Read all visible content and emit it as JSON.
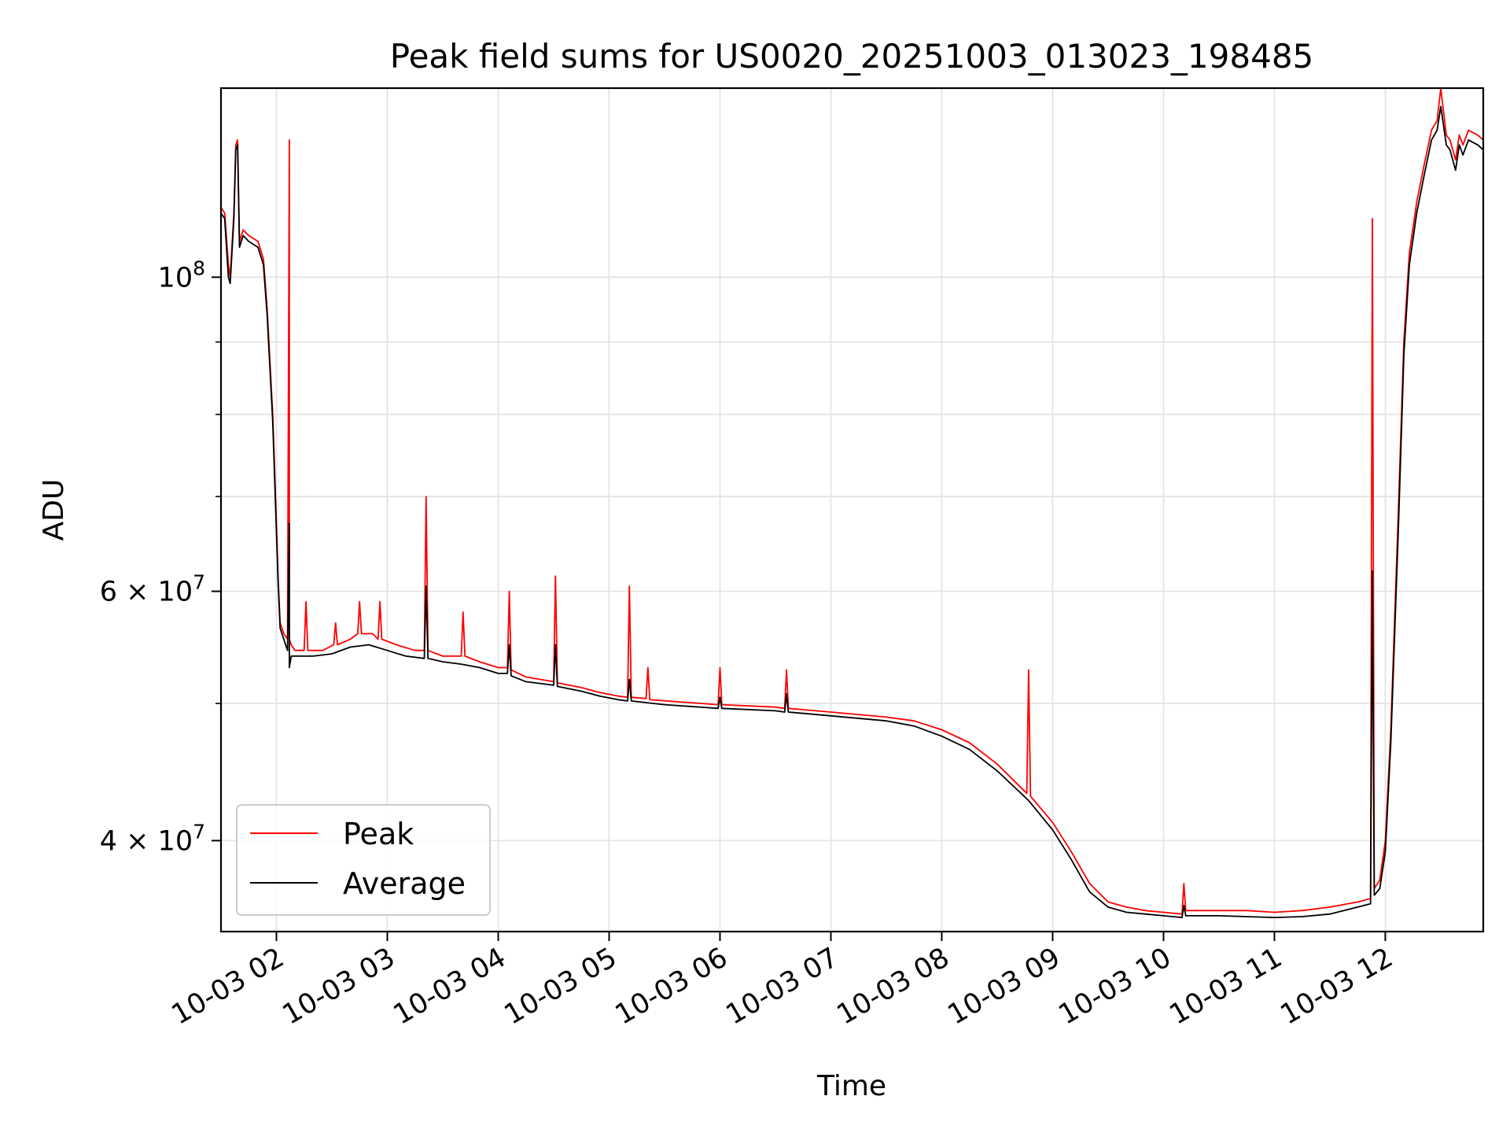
{
  "chart_data": {
    "type": "line",
    "title": "Peak field sums for US0020_20251003_013023_198485",
    "xlabel": "Time",
    "ylabel": "ADU",
    "yscale": "log",
    "ylim": [
      34500000,
      136000000
    ],
    "xlim": [
      "2025-10-03 01:30",
      "2025-10-03 12:53"
    ],
    "grid": true,
    "legend": "lower-left",
    "x_ticks": [
      "10-03 02",
      "10-03 03",
      "10-03 04",
      "10-03 05",
      "10-03 06",
      "10-03 07",
      "10-03 08",
      "10-03 09",
      "10-03 10",
      "10-03 11",
      "10-03 12"
    ],
    "y_ticks": [
      {
        "value": 100000000,
        "base": "10",
        "exp": "8"
      },
      {
        "value": 60000000,
        "base": "6 × 10",
        "exp": "7"
      },
      {
        "value": 40000000,
        "base": "4 × 10",
        "exp": "7"
      }
    ],
    "y_minor_ticks": [
      50000000,
      70000000,
      80000000,
      90000000
    ],
    "series": [
      {
        "name": "Peak",
        "color": "#ff0000",
        "points": [
          [
            "01:30",
            112000000
          ],
          [
            "01:32",
            111000000
          ],
          [
            "01:34",
            102000000
          ],
          [
            "01:35",
            100000000
          ],
          [
            "01:37",
            111000000
          ],
          [
            "01:38",
            124000000
          ],
          [
            "01:39",
            125000000
          ],
          [
            "01:40",
            106000000
          ],
          [
            "01:42",
            108000000
          ],
          [
            "01:45",
            107000000
          ],
          [
            "01:50",
            106000000
          ],
          [
            "01:52",
            104000000
          ],
          [
            "01:53",
            103000000
          ],
          [
            "01:55",
            95000000
          ],
          [
            "01:58",
            80000000
          ],
          [
            "02:00",
            67000000
          ],
          [
            "02:01",
            61000000
          ],
          [
            "02:02",
            57000000
          ],
          [
            "02:04",
            56000000
          ],
          [
            "02:06",
            55500000
          ],
          [
            "02:07",
            125000000
          ],
          [
            "02:07",
            55500000
          ],
          [
            "02:08",
            55000000
          ],
          [
            "02:10",
            54500000
          ],
          [
            "02:15",
            54500000
          ],
          [
            "02:16",
            59000000
          ],
          [
            "02:17",
            54500000
          ],
          [
            "02:25",
            54500000
          ],
          [
            "02:31",
            55000000
          ],
          [
            "02:32",
            57000000
          ],
          [
            "02:33",
            55000000
          ],
          [
            "02:40",
            55500000
          ],
          [
            "02:44",
            56000000
          ],
          [
            "02:45",
            59000000
          ],
          [
            "02:46",
            56000000
          ],
          [
            "02:52",
            56000000
          ],
          [
            "02:55",
            55500000
          ],
          [
            "02:56",
            59000000
          ],
          [
            "02:57",
            55500000
          ],
          [
            "03:05",
            55000000
          ],
          [
            "03:15",
            54500000
          ],
          [
            "03:20",
            54500000
          ],
          [
            "03:21",
            70000000
          ],
          [
            "03:22",
            54500000
          ],
          [
            "03:30",
            54000000
          ],
          [
            "03:40",
            54000000
          ],
          [
            "03:41",
            58000000
          ],
          [
            "03:42",
            54000000
          ],
          [
            "03:50",
            53500000
          ],
          [
            "04:00",
            53000000
          ],
          [
            "04:05",
            53000000
          ],
          [
            "04:06",
            60000000
          ],
          [
            "04:07",
            52800000
          ],
          [
            "04:15",
            52200000
          ],
          [
            "04:30",
            51800000
          ],
          [
            "04:31",
            61500000
          ],
          [
            "04:32",
            51700000
          ],
          [
            "04:45",
            51300000
          ],
          [
            "04:55",
            50900000
          ],
          [
            "05:05",
            50600000
          ],
          [
            "05:10",
            50500000
          ],
          [
            "05:11",
            60500000
          ],
          [
            "05:12",
            50500000
          ],
          [
            "05:20",
            50400000
          ],
          [
            "05:21",
            53000000
          ],
          [
            "05:22",
            50300000
          ],
          [
            "05:40",
            50100000
          ],
          [
            "05:59",
            49900000
          ],
          [
            "06:00",
            53000000
          ],
          [
            "06:01",
            49900000
          ],
          [
            "06:30",
            49700000
          ],
          [
            "06:35",
            49600000
          ],
          [
            "06:36",
            52800000
          ],
          [
            "06:37",
            49600000
          ],
          [
            "07:00",
            49300000
          ],
          [
            "07:30",
            48900000
          ],
          [
            "07:45",
            48600000
          ],
          [
            "08:00",
            47900000
          ],
          [
            "08:15",
            46900000
          ],
          [
            "08:30",
            45300000
          ],
          [
            "08:46",
            43200000
          ],
          [
            "08:47",
            52800000
          ],
          [
            "08:48",
            43000000
          ],
          [
            "09:00",
            41200000
          ],
          [
            "09:10",
            39300000
          ],
          [
            "09:20",
            37300000
          ],
          [
            "09:30",
            36200000
          ],
          [
            "09:40",
            35900000
          ],
          [
            "09:50",
            35700000
          ],
          [
            "10:00",
            35600000
          ],
          [
            "10:10",
            35500000
          ],
          [
            "10:11",
            37300000
          ],
          [
            "10:12",
            35700000
          ],
          [
            "10:30",
            35700000
          ],
          [
            "10:45",
            35700000
          ],
          [
            "11:00",
            35600000
          ],
          [
            "11:15",
            35700000
          ],
          [
            "11:30",
            35900000
          ],
          [
            "11:45",
            36200000
          ],
          [
            "11:52",
            36400000
          ],
          [
            "11:53",
            110000000
          ],
          [
            "11:54",
            37000000
          ],
          [
            "11:57",
            37500000
          ],
          [
            "12:00",
            40000000
          ],
          [
            "12:03",
            48000000
          ],
          [
            "12:07",
            68000000
          ],
          [
            "12:10",
            90000000
          ],
          [
            "12:13",
            104000000
          ],
          [
            "12:17",
            113000000
          ],
          [
            "12:21",
            120000000
          ],
          [
            "12:25",
            127000000
          ],
          [
            "12:28",
            129000000
          ],
          [
            "12:30",
            136000000
          ],
          [
            "12:33",
            126000000
          ],
          [
            "12:35",
            125000000
          ],
          [
            "12:38",
            121000000
          ],
          [
            "12:40",
            126000000
          ],
          [
            "12:42",
            124000000
          ],
          [
            "12:45",
            127000000
          ],
          [
            "12:50",
            126000000
          ],
          [
            "12:53",
            125000000
          ]
        ]
      },
      {
        "name": "Average",
        "color": "#000000",
        "points": [
          [
            "01:30",
            111000000
          ],
          [
            "01:32",
            110000000
          ],
          [
            "01:34",
            100000000
          ],
          [
            "01:35",
            99000000
          ],
          [
            "01:37",
            110000000
          ],
          [
            "01:38",
            123000000
          ],
          [
            "01:39",
            124000000
          ],
          [
            "01:40",
            105000000
          ],
          [
            "01:42",
            107000000
          ],
          [
            "01:45",
            106000000
          ],
          [
            "01:50",
            105000000
          ],
          [
            "01:52",
            103000000
          ],
          [
            "01:53",
            102000000
          ],
          [
            "01:55",
            94000000
          ],
          [
            "01:58",
            79000000
          ],
          [
            "02:00",
            66000000
          ],
          [
            "02:01",
            60500000
          ],
          [
            "02:02",
            56500000
          ],
          [
            "02:04",
            55500000
          ],
          [
            "02:06",
            54500000
          ],
          [
            "02:07",
            67000000
          ],
          [
            "02:07",
            53000000
          ],
          [
            "02:08",
            54000000
          ],
          [
            "02:10",
            54000000
          ],
          [
            "02:20",
            54000000
          ],
          [
            "02:30",
            54200000
          ],
          [
            "02:40",
            54800000
          ],
          [
            "02:50",
            55000000
          ],
          [
            "03:00",
            54500000
          ],
          [
            "03:10",
            54000000
          ],
          [
            "03:20",
            53800000
          ],
          [
            "03:21",
            60500000
          ],
          [
            "03:22",
            53800000
          ],
          [
            "03:30",
            53500000
          ],
          [
            "03:40",
            53300000
          ],
          [
            "03:50",
            53000000
          ],
          [
            "04:00",
            52500000
          ],
          [
            "04:05",
            52500000
          ],
          [
            "04:06",
            55000000
          ],
          [
            "04:07",
            52300000
          ],
          [
            "04:15",
            51800000
          ],
          [
            "04:30",
            51500000
          ],
          [
            "04:31",
            55000000
          ],
          [
            "04:32",
            51400000
          ],
          [
            "04:45",
            51000000
          ],
          [
            "04:55",
            50600000
          ],
          [
            "05:05",
            50300000
          ],
          [
            "05:10",
            50200000
          ],
          [
            "05:11",
            52000000
          ],
          [
            "05:12",
            50200000
          ],
          [
            "05:30",
            49900000
          ],
          [
            "05:59",
            49600000
          ],
          [
            "06:00",
            50500000
          ],
          [
            "06:01",
            49600000
          ],
          [
            "06:30",
            49400000
          ],
          [
            "06:35",
            49300000
          ],
          [
            "06:36",
            50800000
          ],
          [
            "06:37",
            49300000
          ],
          [
            "07:00",
            49000000
          ],
          [
            "07:30",
            48600000
          ],
          [
            "07:45",
            48200000
          ],
          [
            "08:00",
            47400000
          ],
          [
            "08:15",
            46400000
          ],
          [
            "08:30",
            44800000
          ],
          [
            "08:47",
            42700000
          ],
          [
            "09:00",
            40700000
          ],
          [
            "09:10",
            38800000
          ],
          [
            "09:20",
            36800000
          ],
          [
            "09:30",
            35900000
          ],
          [
            "09:40",
            35600000
          ],
          [
            "09:50",
            35500000
          ],
          [
            "10:00",
            35400000
          ],
          [
            "10:10",
            35300000
          ],
          [
            "10:11",
            36000000
          ],
          [
            "10:12",
            35400000
          ],
          [
            "10:30",
            35400000
          ],
          [
            "10:45",
            35350000
          ],
          [
            "11:00",
            35300000
          ],
          [
            "11:15",
            35350000
          ],
          [
            "11:30",
            35500000
          ],
          [
            "11:45",
            35900000
          ],
          [
            "11:52",
            36100000
          ],
          [
            "11:53",
            62000000
          ],
          [
            "11:54",
            36600000
          ],
          [
            "11:57",
            37000000
          ],
          [
            "12:00",
            39300000
          ],
          [
            "12:03",
            47000000
          ],
          [
            "12:07",
            66000000
          ],
          [
            "12:10",
            88000000
          ],
          [
            "12:13",
            102000000
          ],
          [
            "12:17",
            111000000
          ],
          [
            "12:21",
            118000000
          ],
          [
            "12:25",
            125000000
          ],
          [
            "12:28",
            127000000
          ],
          [
            "12:30",
            132000000
          ],
          [
            "12:33",
            124000000
          ],
          [
            "12:35",
            123000000
          ],
          [
            "12:38",
            119000000
          ],
          [
            "12:40",
            124000000
          ],
          [
            "12:42",
            122000000
          ],
          [
            "12:45",
            125000000
          ],
          [
            "12:50",
            124000000
          ],
          [
            "12:53",
            123000000
          ]
        ]
      }
    ]
  }
}
